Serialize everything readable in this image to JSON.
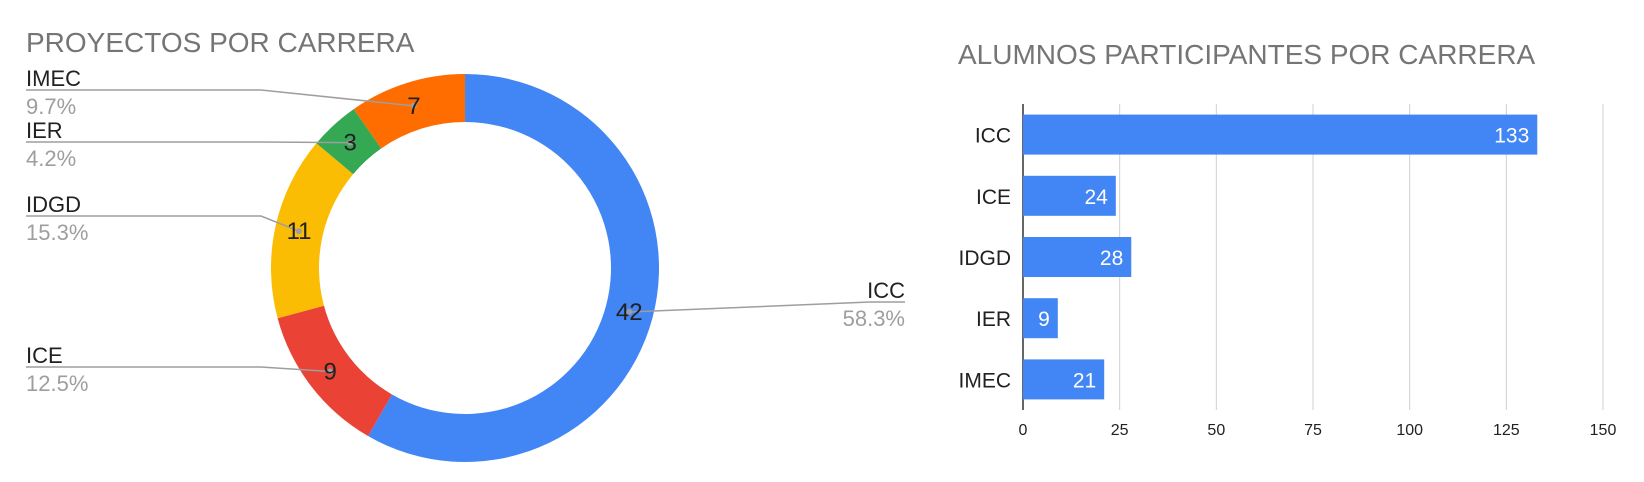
{
  "chart_data": [
    {
      "type": "pie",
      "subtype": "donut",
      "title": "PROYECTOS POR CARRERA",
      "categories": [
        "ICC",
        "ICE",
        "IDGD",
        "IER",
        "IMEC"
      ],
      "values": [
        42,
        9,
        11,
        3,
        7
      ],
      "value_labels": [
        "42",
        "9",
        "11",
        "3",
        "7"
      ],
      "percent_labels": [
        "58.3%",
        "12.5%",
        "15.3%",
        "4.2%",
        "9.7%"
      ],
      "colors": [
        "#4285f4",
        "#ea4335",
        "#fbbc04",
        "#34a853",
        "#ff6d01"
      ],
      "legend": "none"
    },
    {
      "type": "bar",
      "orientation": "horizontal",
      "title": "ALUMNOS PARTICIPANTES POR CARRERA",
      "categories": [
        "ICC",
        "ICE",
        "IDGD",
        "IER",
        "IMEC"
      ],
      "values": [
        133,
        24,
        28,
        9,
        21
      ],
      "value_labels": [
        "133",
        "24",
        "28",
        "9",
        "21"
      ],
      "xlim": [
        0,
        150
      ],
      "xticks": [
        "0",
        "25",
        "50",
        "75",
        "100",
        "125",
        "150"
      ],
      "grid": true,
      "color": "#4285f4",
      "legend": "none"
    }
  ]
}
